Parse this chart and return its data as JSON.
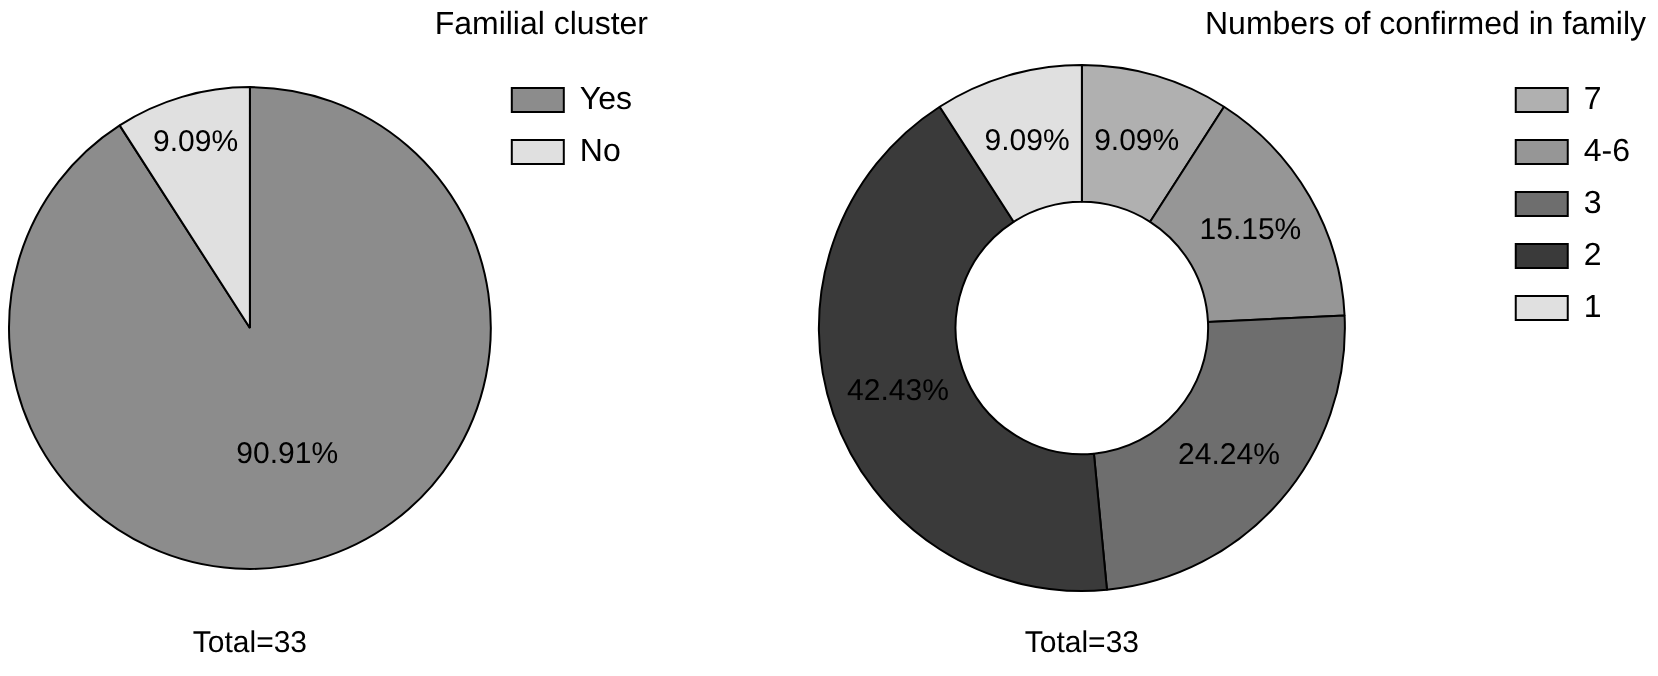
{
  "chart_data": [
    {
      "type": "pie",
      "legend_title": "Familial cluster",
      "categories": [
        "Yes",
        "No"
      ],
      "values": [
        90.91,
        9.09
      ],
      "colors": [
        "#8c8c8c",
        "#e0e0e0"
      ],
      "value_labels": [
        "90.91%",
        "9.09%"
      ],
      "legend": "top right",
      "annotations": [
        "Total=33"
      ]
    },
    {
      "type": "donut",
      "legend_title": "Numbers of confirmed in family",
      "categories": [
        "7",
        "4-6",
        "3",
        "2",
        "1"
      ],
      "values": [
        9.09,
        15.15,
        24.24,
        42.43,
        9.09
      ],
      "colors": [
        "#b0b0b0",
        "#969696",
        "#6e6e6e",
        "#3a3a3a",
        "#e0e0e0"
      ],
      "value_labels": [
        "9.09%",
        "15.15%",
        "24.24%",
        "42.43%",
        "9.09%"
      ],
      "legend": "top right",
      "annotations": [
        "Total=33"
      ]
    }
  ]
}
